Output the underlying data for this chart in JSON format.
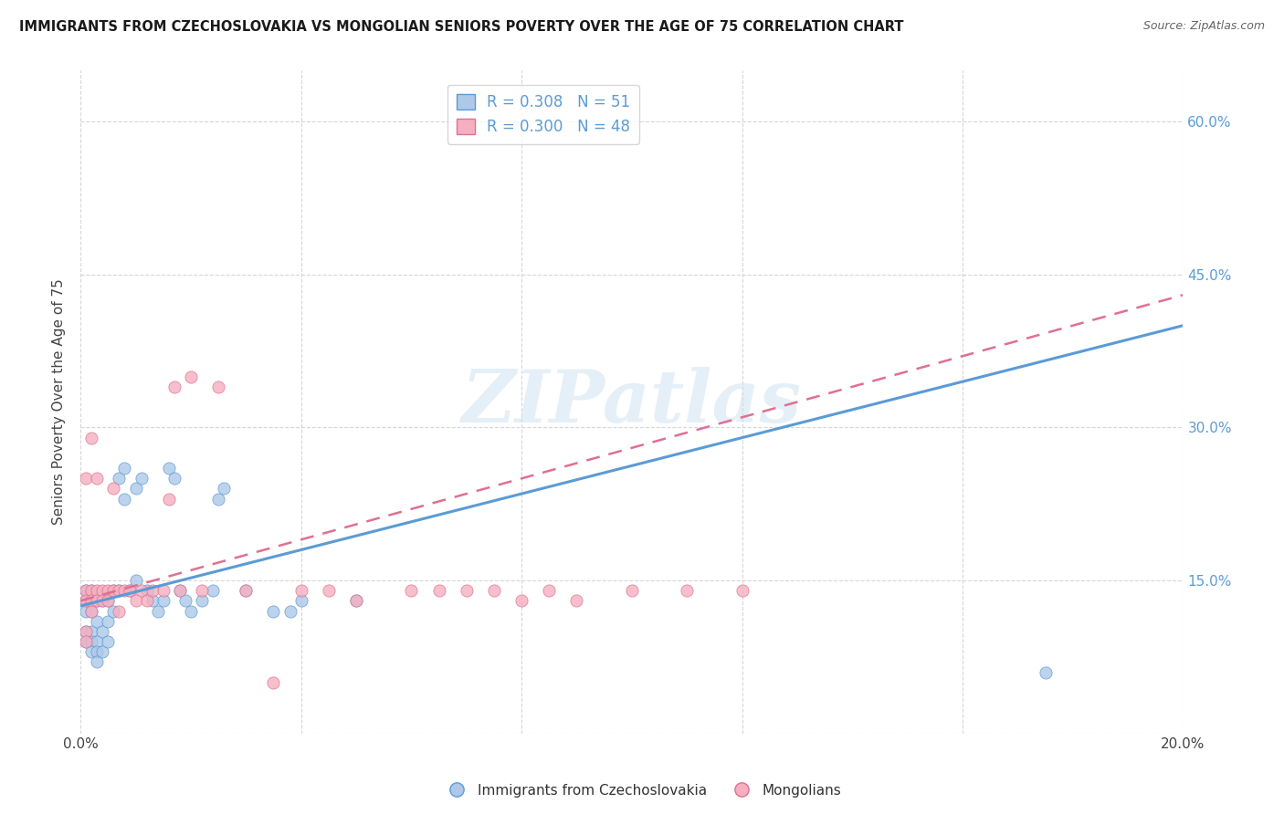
{
  "title": "IMMIGRANTS FROM CZECHOSLOVAKIA VS MONGOLIAN SENIORS POVERTY OVER THE AGE OF 75 CORRELATION CHART",
  "source": "Source: ZipAtlas.com",
  "ylabel": "Seniors Poverty Over the Age of 75",
  "xlim": [
    0.0,
    0.2
  ],
  "ylim": [
    0.0,
    0.65
  ],
  "ytick_vals": [
    0.0,
    0.15,
    0.3,
    0.45,
    0.6
  ],
  "ytick_labels": [
    "",
    "15.0%",
    "30.0%",
    "45.0%",
    "60.0%"
  ],
  "xtick_positions": [
    0.0,
    0.04,
    0.08,
    0.12,
    0.16,
    0.2
  ],
  "xtick_labels": [
    "0.0%",
    "",
    "",
    "",
    "",
    "20.0%"
  ],
  "legend_r1": "0.308",
  "legend_n1": "51",
  "legend_r2": "0.300",
  "legend_n2": "48",
  "color_blue": "#adc8e8",
  "color_pink": "#f5afc0",
  "line_color_blue": "#5b9bd5",
  "line_color_pink": "#e07090",
  "watermark": "ZIPatlas",
  "blue_trend_x": [
    0.0,
    0.2
  ],
  "blue_trend_y": [
    0.125,
    0.4
  ],
  "pink_trend_x": [
    0.0,
    0.2
  ],
  "pink_trend_y": [
    0.13,
    0.43
  ],
  "blue_scatter_x": [
    0.001,
    0.001,
    0.001,
    0.001,
    0.001,
    0.002,
    0.002,
    0.002,
    0.002,
    0.002,
    0.002,
    0.003,
    0.003,
    0.003,
    0.003,
    0.003,
    0.004,
    0.004,
    0.004,
    0.005,
    0.005,
    0.005,
    0.006,
    0.006,
    0.007,
    0.007,
    0.008,
    0.008,
    0.009,
    0.01,
    0.01,
    0.011,
    0.012,
    0.013,
    0.014,
    0.015,
    0.016,
    0.017,
    0.018,
    0.019,
    0.02,
    0.022,
    0.024,
    0.025,
    0.026,
    0.03,
    0.035,
    0.038,
    0.04,
    0.05,
    0.175
  ],
  "blue_scatter_y": [
    0.13,
    0.12,
    0.14,
    0.1,
    0.09,
    0.13,
    0.12,
    0.14,
    0.1,
    0.09,
    0.08,
    0.13,
    0.11,
    0.09,
    0.08,
    0.07,
    0.13,
    0.1,
    0.08,
    0.13,
    0.11,
    0.09,
    0.14,
    0.12,
    0.14,
    0.25,
    0.23,
    0.26,
    0.14,
    0.15,
    0.24,
    0.25,
    0.14,
    0.13,
    0.12,
    0.13,
    0.26,
    0.25,
    0.14,
    0.13,
    0.12,
    0.13,
    0.14,
    0.23,
    0.24,
    0.14,
    0.12,
    0.12,
    0.13,
    0.13,
    0.06
  ],
  "pink_scatter_x": [
    0.001,
    0.001,
    0.001,
    0.001,
    0.001,
    0.002,
    0.002,
    0.002,
    0.002,
    0.003,
    0.003,
    0.003,
    0.004,
    0.004,
    0.005,
    0.005,
    0.006,
    0.006,
    0.007,
    0.007,
    0.008,
    0.009,
    0.01,
    0.011,
    0.012,
    0.013,
    0.015,
    0.016,
    0.017,
    0.018,
    0.02,
    0.022,
    0.025,
    0.03,
    0.035,
    0.04,
    0.045,
    0.05,
    0.06,
    0.065,
    0.07,
    0.075,
    0.08,
    0.085,
    0.09,
    0.1,
    0.11,
    0.12
  ],
  "pink_scatter_y": [
    0.14,
    0.13,
    0.25,
    0.1,
    0.09,
    0.29,
    0.14,
    0.13,
    0.12,
    0.25,
    0.14,
    0.13,
    0.14,
    0.13,
    0.14,
    0.13,
    0.24,
    0.14,
    0.14,
    0.12,
    0.14,
    0.14,
    0.13,
    0.14,
    0.13,
    0.14,
    0.14,
    0.23,
    0.34,
    0.14,
    0.35,
    0.14,
    0.34,
    0.14,
    0.05,
    0.14,
    0.14,
    0.13,
    0.14,
    0.14,
    0.14,
    0.14,
    0.13,
    0.14,
    0.13,
    0.14,
    0.14,
    0.14
  ]
}
